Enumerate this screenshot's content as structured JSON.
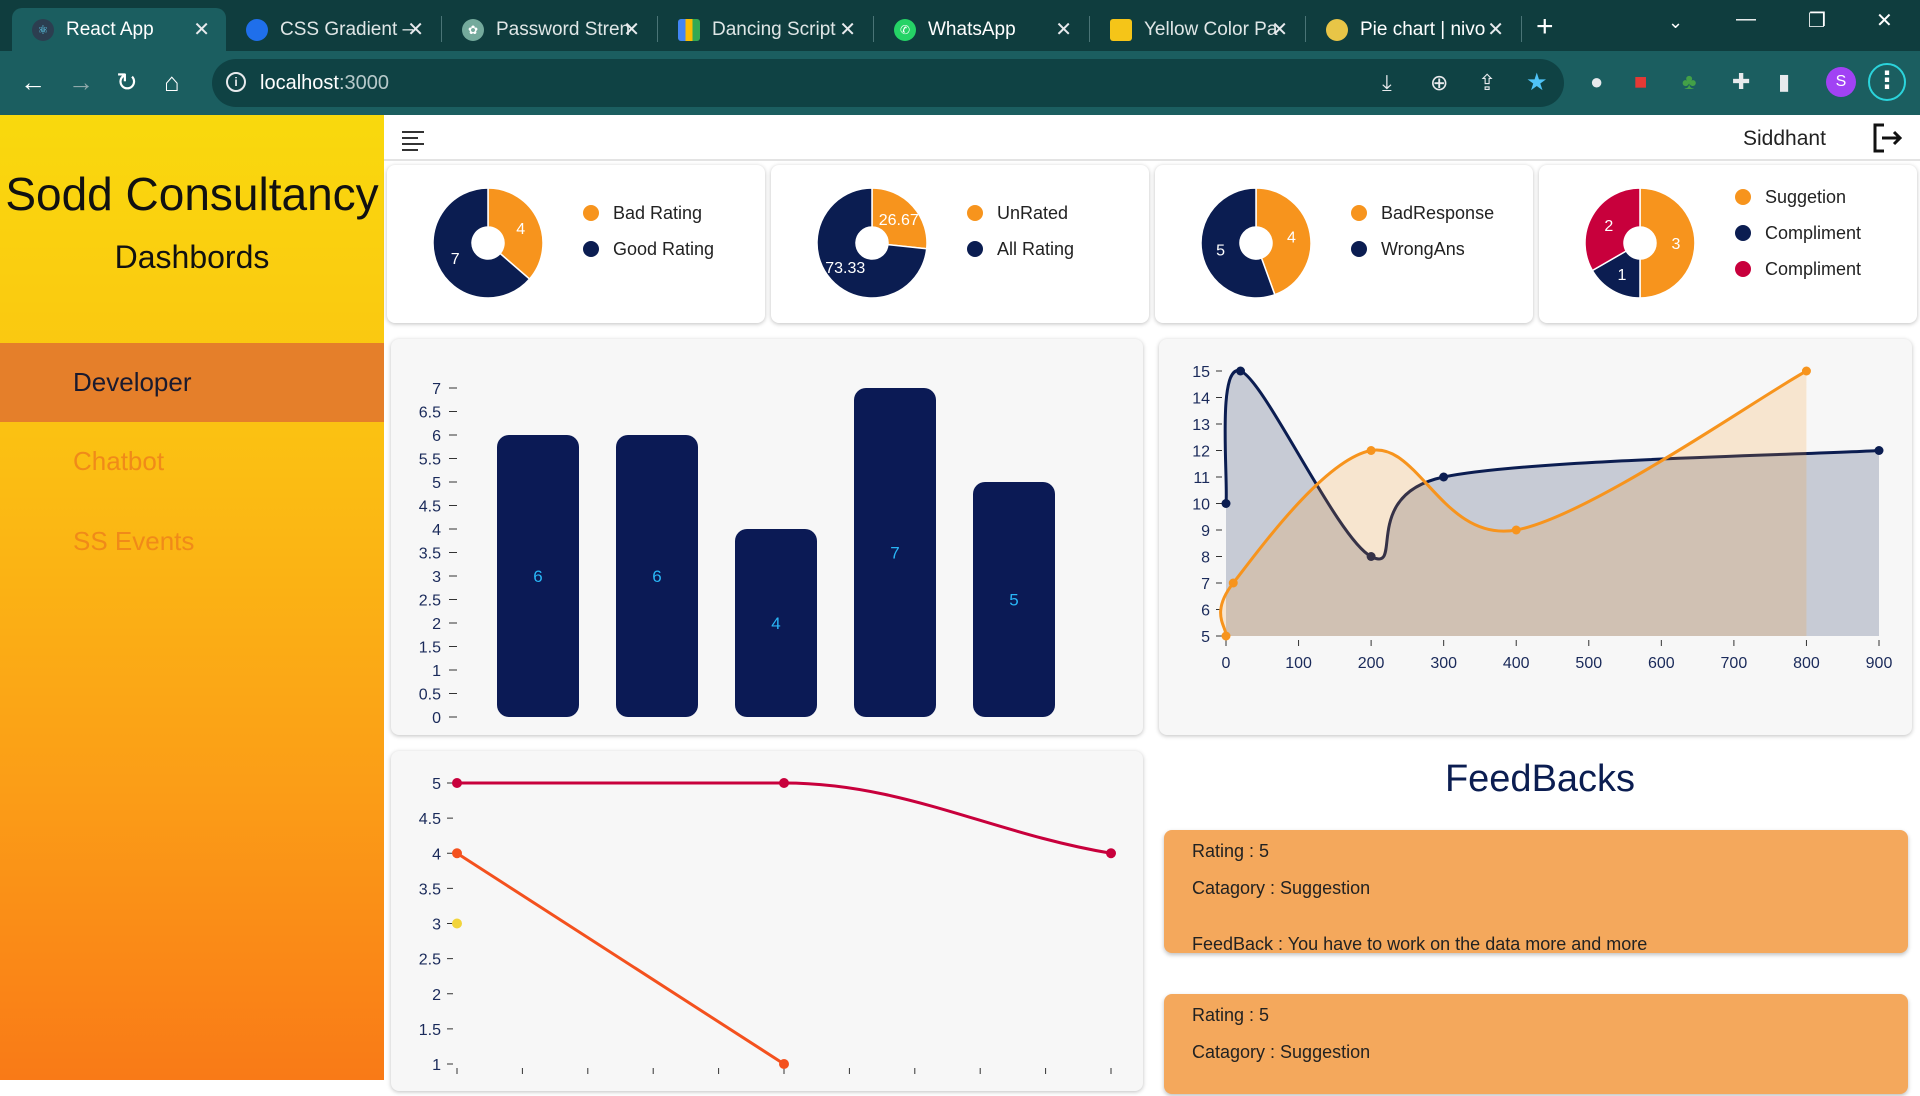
{
  "browser": {
    "tabs": [
      {
        "title": "React App",
        "icon": "react-icon",
        "color": "#61dafb"
      },
      {
        "title": "CSS Gradient – ",
        "icon": "globe-icon",
        "color": "#1f6feb"
      },
      {
        "title": "Password Stren",
        "icon": "openai-icon",
        "color": "#74aa9c"
      },
      {
        "title": "Dancing Script",
        "icon": "google-fonts-icon",
        "color": "#4285f4"
      },
      {
        "title": "WhatsApp",
        "icon": "whatsapp-icon",
        "color": "#25d366"
      },
      {
        "title": "Yellow Color Pa",
        "icon": "palette-icon",
        "color": "#f5c518"
      },
      {
        "title": "Pie chart | nivo",
        "icon": "nivo-icon",
        "color": "#e8c547"
      }
    ],
    "url_host": "localhost",
    "url_port": ":3000",
    "profile_initial": "S"
  },
  "sidebar": {
    "brand": "Sodd Consultancy",
    "subtitle": "Dashbords",
    "items": [
      {
        "label": "Developer",
        "active": true
      },
      {
        "label": "Chatbot",
        "active": false
      },
      {
        "label": "SS Events",
        "active": false
      }
    ]
  },
  "topbar": {
    "username": "Siddhant"
  },
  "pies": [
    {
      "slices": [
        {
          "label": "Bad Rating",
          "value": 4,
          "color": "#f7941d"
        },
        {
          "label": "Good Rating",
          "value": 7,
          "color": "#0b1d51"
        }
      ]
    },
    {
      "slices": [
        {
          "label": "UnRated",
          "value": 26.67,
          "color": "#f7941d"
        },
        {
          "label": "All Rating",
          "value": 73.33,
          "color": "#0b1d51"
        }
      ]
    },
    {
      "slices": [
        {
          "label": "BadResponse",
          "value": 4,
          "color": "#f7941d"
        },
        {
          "label": "WrongAns",
          "value": 5,
          "color": "#0b1d51"
        }
      ]
    },
    {
      "slices": [
        {
          "label": "Suggetion",
          "value": 3,
          "color": "#f7941d"
        },
        {
          "label": "Compliment",
          "value": 1,
          "color": "#0b1d51"
        },
        {
          "label": "Compliment",
          "value": 2,
          "color": "#c8003c"
        }
      ]
    }
  ],
  "chart_data": [
    {
      "type": "bar",
      "values": [
        6,
        6,
        4,
        7,
        5
      ],
      "ylim": [
        0,
        7
      ],
      "yticks": [
        "0",
        "0.5",
        "1",
        "1.5",
        "2",
        "2.5",
        "3",
        "3.5",
        "4",
        "4.5",
        "5",
        "5.5",
        "6",
        "6.5",
        "7"
      ],
      "color": "#0b1a55",
      "label_color": "#29b6f6"
    },
    {
      "type": "area",
      "xlim": [
        0,
        900
      ],
      "ylim": [
        5,
        15
      ],
      "xticks": [
        "0",
        "100",
        "200",
        "300",
        "400",
        "500",
        "600",
        "700",
        "800",
        "900"
      ],
      "yticks": [
        "5",
        "6",
        "7",
        "8",
        "9",
        "10",
        "11",
        "12",
        "13",
        "14",
        "15"
      ],
      "series": [
        {
          "color": "#0b1d51",
          "points": [
            [
              0,
              10
            ],
            [
              20,
              15
            ],
            [
              200,
              8
            ],
            [
              300,
              11
            ],
            [
              900,
              12
            ]
          ]
        },
        {
          "color": "#f7941d",
          "points": [
            [
              0,
              5
            ],
            [
              10,
              7
            ],
            [
              200,
              12
            ],
            [
              400,
              9
            ],
            [
              800,
              15
            ]
          ]
        }
      ]
    },
    {
      "type": "line",
      "ylim": [
        1,
        5
      ],
      "yticks": [
        "1",
        "1.5",
        "2",
        "2.5",
        "3",
        "3.5",
        "4",
        "4.5",
        "5"
      ],
      "x_positions": 11,
      "series": [
        {
          "color": "#c8003c",
          "points": [
            [
              0,
              5
            ],
            [
              5,
              5
            ],
            [
              10,
              4
            ]
          ]
        },
        {
          "color": "#f4511e",
          "points": [
            [
              0,
              4
            ],
            [
              5,
              1
            ]
          ]
        },
        {
          "color": "#f2d43b",
          "points": [
            [
              0,
              3
            ]
          ]
        }
      ]
    }
  ],
  "feedbacks": {
    "title": "FeedBacks",
    "items": [
      {
        "rating": "Rating : 5",
        "category": "Catagory : Suggestion",
        "text": "FeedBack : You have to work on the data more and more"
      },
      {
        "rating": "Rating : 5",
        "category": "Catagory : Suggestion",
        "text": ""
      }
    ]
  }
}
